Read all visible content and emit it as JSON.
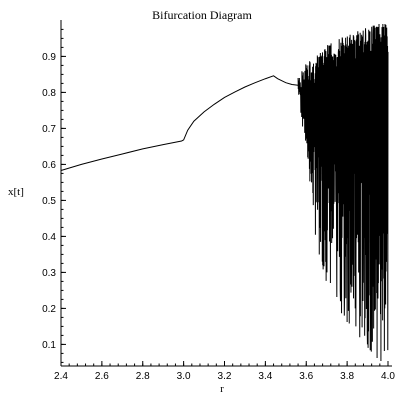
{
  "chart_data": {
    "type": "line",
    "title": "Bifurcation Diagram",
    "xlabel": "r",
    "ylabel": "x[t]",
    "xlim": [
      2.4,
      4.0
    ],
    "ylim": [
      0.04,
      0.99
    ],
    "grid": false,
    "x_ticks": [
      "2.4",
      "2.6",
      "2.8",
      "3.0",
      "3.2",
      "3.4",
      "3.6",
      "3.8",
      "4.0"
    ],
    "y_ticks": [
      "0.1",
      "0.2",
      "0.3",
      "0.4",
      "0.5",
      "0.6",
      "0.7",
      "0.8",
      "0.9"
    ],
    "series": [
      {
        "color": "#000000",
        "x": [
          2.4,
          2.5,
          2.6,
          2.7,
          2.8,
          2.9,
          2.99,
          3.0,
          3.02,
          3.05,
          3.1,
          3.15,
          3.2,
          3.25,
          3.3,
          3.35,
          3.4,
          3.44,
          3.46,
          3.5,
          3.53,
          3.56
        ],
        "y": [
          0.583,
          0.6,
          0.615,
          0.629,
          0.643,
          0.655,
          0.665,
          0.668,
          0.695,
          0.72,
          0.746,
          0.767,
          0.786,
          0.801,
          0.815,
          0.827,
          0.838,
          0.846,
          0.838,
          0.827,
          0.822,
          0.82
        ]
      }
    ],
    "chaotic_region": {
      "r_start": 3.56,
      "r_end": 4.0,
      "upper_envelope": [
        [
          3.56,
          0.84
        ],
        [
          3.6,
          0.88
        ],
        [
          3.65,
          0.9
        ],
        [
          3.7,
          0.93
        ],
        [
          3.75,
          0.95
        ],
        [
          3.8,
          0.96
        ],
        [
          3.85,
          0.97
        ],
        [
          3.9,
          0.98
        ],
        [
          3.95,
          0.99
        ],
        [
          4.0,
          0.99
        ]
      ],
      "lower_envelope": [
        [
          3.56,
          0.8
        ],
        [
          3.6,
          0.62
        ],
        [
          3.65,
          0.38
        ],
        [
          3.7,
          0.27
        ],
        [
          3.75,
          0.2
        ],
        [
          3.8,
          0.15
        ],
        [
          3.85,
          0.12
        ],
        [
          3.9,
          0.09
        ],
        [
          3.95,
          0.06
        ],
        [
          4.0,
          0.04
        ]
      ],
      "samples": [
        0.84,
        0.81,
        0.86,
        0.78,
        0.89,
        0.62,
        0.9,
        0.55,
        0.88,
        0.4,
        0.91,
        0.32,
        0.9,
        0.28,
        0.92,
        0.3,
        0.93,
        0.48,
        0.9,
        0.6,
        0.94,
        0.35,
        0.92,
        0.22,
        0.95,
        0.18,
        0.9,
        0.5,
        0.96,
        0.26,
        0.93,
        0.15,
        0.97,
        0.12,
        0.96,
        0.45,
        0.98,
        0.1,
        0.97,
        0.08,
        0.99,
        0.3,
        0.98,
        0.06,
        0.99,
        0.05,
        0.99,
        0.2,
        0.98,
        0.04
      ]
    }
  }
}
